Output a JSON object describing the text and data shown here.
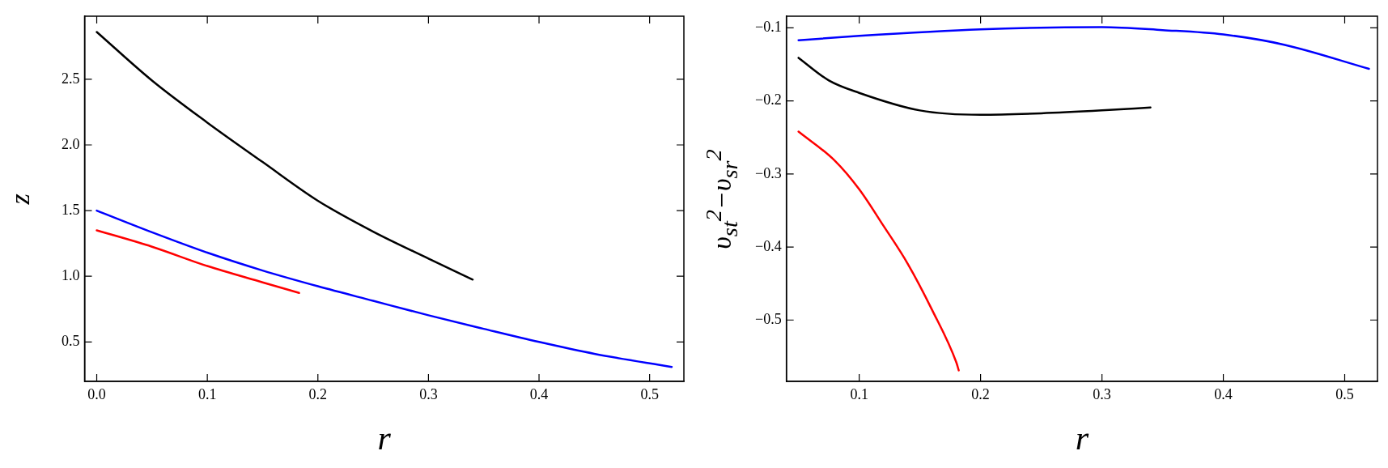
{
  "chart_data": [
    {
      "type": "line",
      "xlabel": "r",
      "ylabel": "z",
      "grid": false,
      "xlim": [
        -0.011,
        0.531
      ],
      "ylim": [
        0.2,
        2.98
      ],
      "xticks": [
        {
          "value": 0,
          "label": "0.0"
        },
        0.1,
        0.2,
        0.3,
        0.4,
        0.5
      ],
      "yticks": [
        0.5,
        {
          "value": 1,
          "label": "1.0"
        },
        1.5,
        {
          "value": 2,
          "label": "2.0"
        },
        2.5
      ],
      "series": [
        {
          "color": "#000000",
          "x": [
            0,
            0.05,
            0.1,
            0.15,
            0.2,
            0.25,
            0.3,
            0.34
          ],
          "values": [
            2.86,
            2.49,
            2.17,
            1.87,
            1.575,
            1.34,
            1.135,
            0.975
          ]
        },
        {
          "color": "#0000ff",
          "x": [
            0,
            0.05,
            0.1,
            0.15,
            0.2,
            0.25,
            0.3,
            0.35,
            0.4,
            0.45,
            0.52
          ],
          "values": [
            1.5,
            1.335,
            1.18,
            1.044,
            0.924,
            0.813,
            0.703,
            0.6,
            0.5,
            0.41,
            0.31
          ]
        },
        {
          "color": "#ff0000",
          "x": [
            0,
            0.05,
            0.1,
            0.15,
            0.183
          ],
          "values": [
            1.35,
            1.225,
            1.078,
            0.954,
            0.873
          ]
        }
      ]
    },
    {
      "type": "line",
      "xlabel": "r",
      "ylabel": "υ$_{st}$$^{2}$−υ$_{sr}$$^{2}$",
      "grid": false,
      "xlim": [
        0.04,
        0.527
      ],
      "ylim": [
        -0.584,
        -0.084
      ],
      "xticks": [
        0.1,
        0.2,
        0.3,
        0.4,
        0.5
      ],
      "yticks": [
        {
          "value": -0.5,
          "label": "−0.5"
        },
        {
          "value": -0.4,
          "label": "−0.4"
        },
        {
          "value": -0.3,
          "label": "−0.3"
        },
        {
          "value": -0.2,
          "label": "−0.2"
        },
        {
          "value": -0.1,
          "label": "−0.1"
        }
      ],
      "series": [
        {
          "color": "#0000ff",
          "x": [
            0.05,
            0.1,
            0.2,
            0.3,
            0.35,
            0.4,
            0.45,
            0.52
          ],
          "values": [
            -0.117,
            -0.111,
            -0.102,
            -0.099,
            -0.103,
            -0.109,
            -0.123,
            -0.156
          ]
        },
        {
          "color": "#000000",
          "x": [
            0.05,
            0.075,
            0.1,
            0.15,
            0.2,
            0.25,
            0.3,
            0.34
          ],
          "values": [
            -0.141,
            -0.172,
            -0.189,
            -0.213,
            -0.219,
            -0.217,
            -0.213,
            -0.209
          ]
        },
        {
          "color": "#ff0000",
          "x": [
            0.05,
            0.08,
            0.1,
            0.12,
            0.14,
            0.16,
            0.18,
            0.182
          ],
          "values": [
            -0.242,
            -0.282,
            -0.321,
            -0.371,
            -0.423,
            -0.486,
            -0.558,
            -0.569
          ]
        }
      ]
    }
  ]
}
